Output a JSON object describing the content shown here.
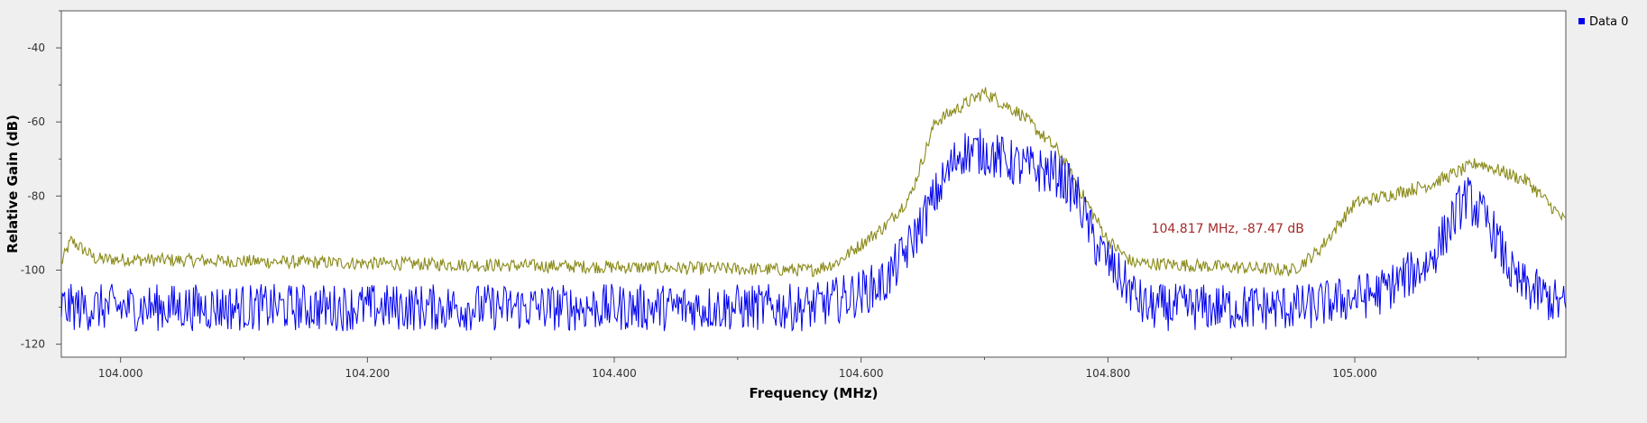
{
  "chart_data": {
    "type": "line",
    "title": "",
    "xlabel": "Frequency (MHz)",
    "ylabel": "Relative Gain (dB)",
    "xlim": [
      103.952,
      105.171
    ],
    "ylim": [
      -123.5,
      -30
    ],
    "x_ticks": [
      "104.000",
      "104.200",
      "104.400",
      "104.600",
      "104.800",
      "105.000"
    ],
    "x_tick_values": [
      104.0,
      104.2,
      104.4,
      104.6,
      104.8,
      105.0
    ],
    "y_ticks": [
      "-40",
      "-60",
      "-80",
      "-100",
      "-120"
    ],
    "y_tick_values": [
      -40,
      -60,
      -80,
      -100,
      -120
    ],
    "grid": false,
    "legend": {
      "position": "top-right",
      "entries": [
        "Data 0"
      ]
    },
    "colors": {
      "data0": "#0000ee",
      "max_hold": "#8a8a1a",
      "marker": "#a52a2a"
    },
    "series": [
      {
        "name": "Data 0",
        "color": "#0000ee",
        "profile": [
          [
            103.952,
            -112
          ],
          [
            104.56,
            -112
          ],
          [
            104.6,
            -108
          ],
          [
            104.62,
            -105
          ],
          [
            104.64,
            -95
          ],
          [
            104.66,
            -82
          ],
          [
            104.68,
            -70
          ],
          [
            104.7,
            -70
          ],
          [
            104.73,
            -74
          ],
          [
            104.76,
            -76
          ],
          [
            104.775,
            -82
          ],
          [
            104.79,
            -95
          ],
          [
            104.81,
            -104
          ],
          [
            104.83,
            -112
          ],
          [
            104.96,
            -112
          ],
          [
            105.02,
            -108
          ],
          [
            105.06,
            -100
          ],
          [
            105.09,
            -82
          ],
          [
            105.11,
            -90
          ],
          [
            105.13,
            -105
          ],
          [
            105.171,
            -112
          ]
        ],
        "noise_db": 8
      },
      {
        "name": "",
        "color": "#8a8a1a",
        "profile": [
          [
            103.952,
            -98
          ],
          [
            103.96,
            -92
          ],
          [
            103.98,
            -97
          ],
          [
            104.56,
            -100
          ],
          [
            104.58,
            -98
          ],
          [
            104.6,
            -93
          ],
          [
            104.62,
            -88
          ],
          [
            104.64,
            -80
          ],
          [
            104.66,
            -60
          ],
          [
            104.7,
            -52
          ],
          [
            104.73,
            -58
          ],
          [
            104.76,
            -68
          ],
          [
            104.78,
            -80
          ],
          [
            104.8,
            -92
          ],
          [
            104.82,
            -98
          ],
          [
            104.95,
            -100
          ],
          [
            104.97,
            -95
          ],
          [
            105.0,
            -82
          ],
          [
            105.06,
            -77
          ],
          [
            105.1,
            -71
          ],
          [
            105.14,
            -76
          ],
          [
            105.171,
            -87
          ]
        ],
        "noise_db": 2
      }
    ],
    "marker": {
      "x": 104.817,
      "y": -87.47,
      "label": "104.817 MHz, -87.47 dB"
    }
  }
}
